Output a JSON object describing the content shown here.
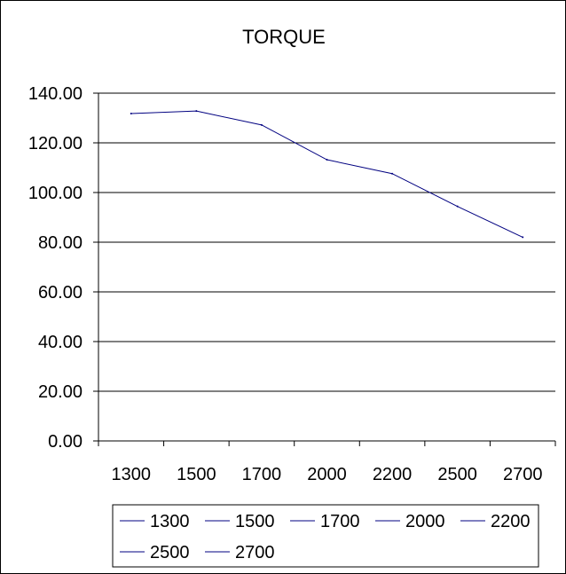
{
  "chart_data": {
    "type": "line",
    "title": "TORQUE",
    "categories": [
      "1300",
      "1500",
      "1700",
      "2000",
      "2200",
      "2500",
      "2700"
    ],
    "series": [
      {
        "values": [
          131.8,
          132.8,
          127.2,
          113.2,
          107.6,
          94.4,
          82.0
        ]
      }
    ],
    "ylim": [
      0,
      140
    ],
    "yticks": [
      "0.00",
      "20.00",
      "40.00",
      "60.00",
      "80.00",
      "100.00",
      "120.00",
      "140.00"
    ],
    "grid": true,
    "legend": {
      "placement": "bottom",
      "entries": [
        "1300",
        "1500",
        "1700",
        "2000",
        "2200",
        "2500",
        "2700"
      ]
    },
    "colors": {
      "line": "#000080",
      "grid": "#000000",
      "background": "#ffffff"
    }
  }
}
